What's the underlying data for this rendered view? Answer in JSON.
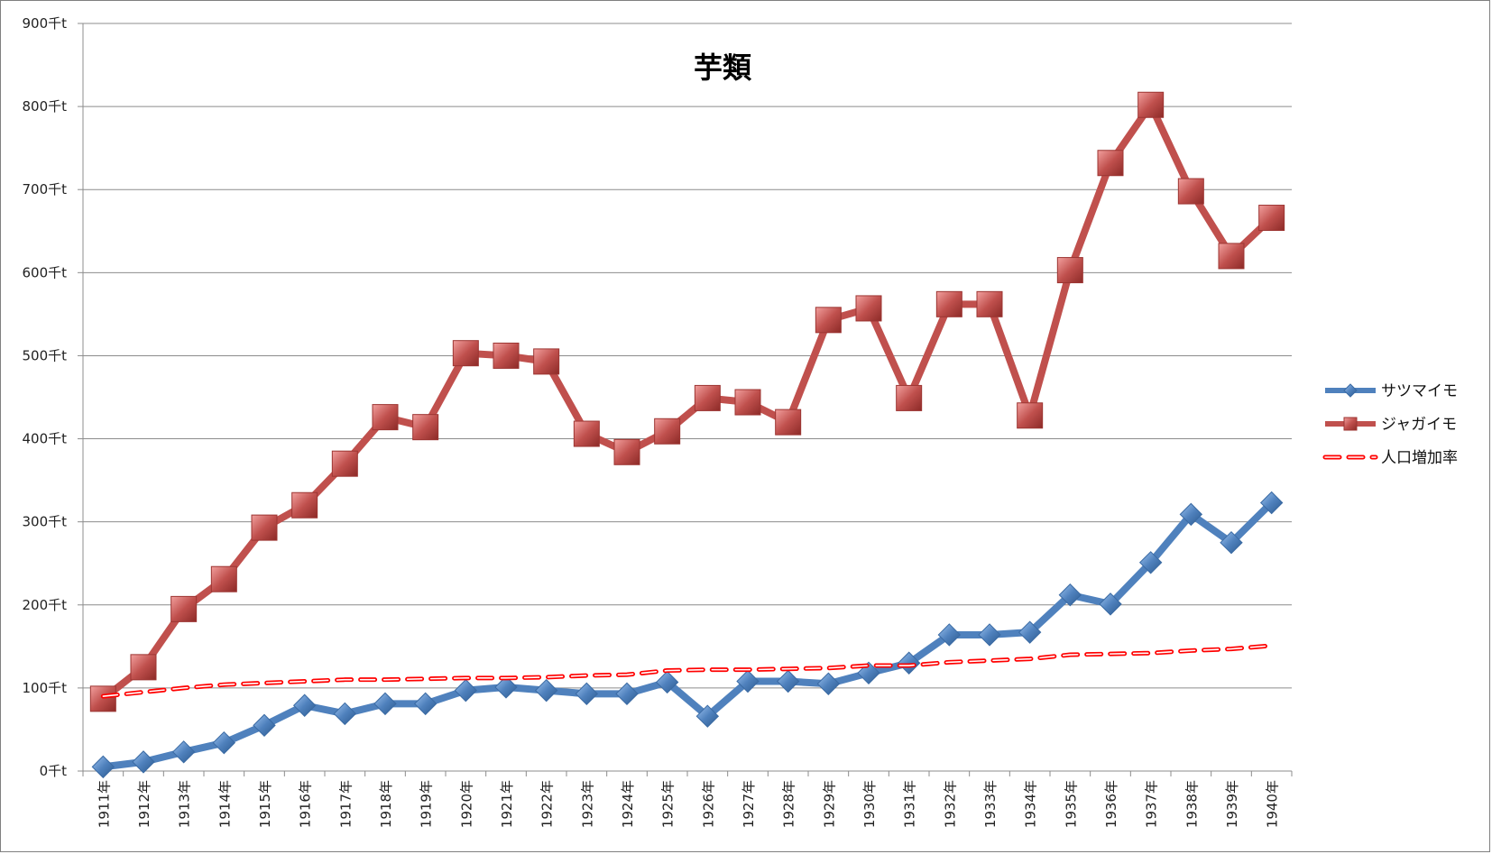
{
  "chart_data": {
    "type": "line",
    "title": "芋類",
    "categories": [
      "1911年",
      "1912年",
      "1913年",
      "1914年",
      "1915年",
      "1916年",
      "1917年",
      "1918年",
      "1919年",
      "1920年",
      "1921年",
      "1922年",
      "1923年",
      "1924年",
      "1925年",
      "1926年",
      "1927年",
      "1928年",
      "1929年",
      "1930年",
      "1931年",
      "1932年",
      "1933年",
      "1934年",
      "1935年",
      "1936年",
      "1937年",
      "1938年",
      "1939年",
      "1940年"
    ],
    "y_ticks": [
      "0千t",
      "100千t",
      "200千t",
      "300千t",
      "400千t",
      "500千t",
      "600千t",
      "700千t",
      "800千t",
      "900千t"
    ],
    "ylim": [
      0,
      900
    ],
    "unit": "千t",
    "grid": true,
    "legend_position": "right",
    "series": [
      {
        "name": "サツマイモ",
        "color": "#4f81bd",
        "marker": "diamond",
        "line_style": "solid",
        "values": [
          5,
          11,
          23,
          34,
          55,
          79,
          69,
          81,
          81,
          97,
          101,
          97,
          93,
          93,
          107,
          66,
          108,
          108,
          105,
          118,
          130,
          164,
          164,
          167,
          212,
          201,
          251,
          309,
          275,
          323
        ]
      },
      {
        "name": "ジャガイモ",
        "color": "#c0504d",
        "marker": "square",
        "line_style": "solid",
        "values": [
          87,
          125,
          195,
          231,
          293,
          320,
          370,
          426,
          414,
          503,
          500,
          493,
          406,
          384,
          409,
          449,
          444,
          420,
          543,
          557,
          449,
          562,
          562,
          428,
          603,
          732,
          802,
          698,
          620,
          666
        ]
      },
      {
        "name": "人口増加率",
        "color": "#ff0000",
        "marker": "none",
        "line_style": "dashed",
        "values": [
          90,
          95,
          100,
          104,
          106,
          108,
          110,
          110,
          111,
          112,
          112,
          113,
          115,
          116,
          121,
          122,
          122,
          123,
          124,
          127,
          127,
          131,
          133,
          135,
          140,
          141,
          142,
          145,
          147,
          151
        ]
      }
    ]
  }
}
